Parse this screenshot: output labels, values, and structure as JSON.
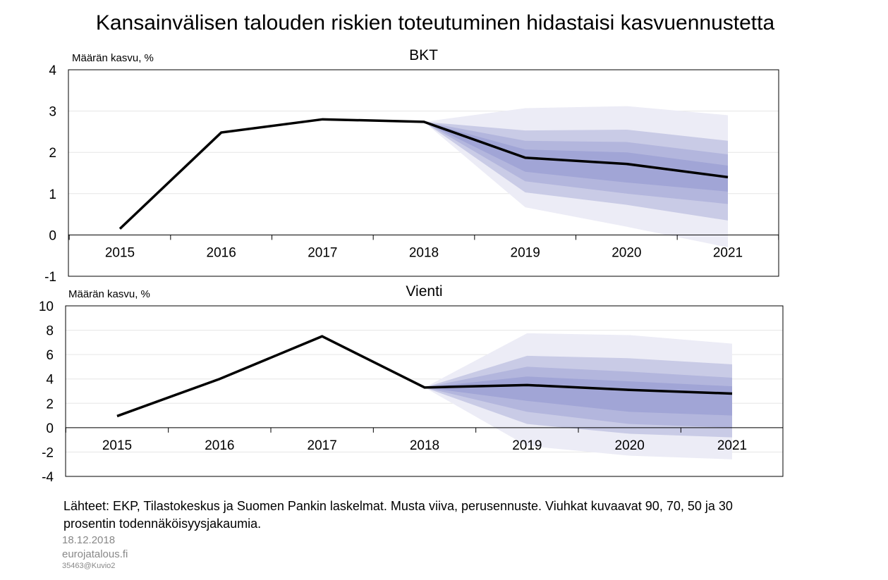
{
  "title": "Kansainvälisen talouden riskien toteutuminen hidastaisi kasvuennustetta",
  "chart_data": [
    {
      "type": "fan",
      "title": "BKT",
      "ylabel": "Määrän kasvu, %",
      "categories": [
        "2015",
        "2016",
        "2017",
        "2018",
        "2019",
        "2020",
        "2021"
      ],
      "values": [
        0.15,
        2.48,
        2.8,
        2.74,
        1.87,
        1.72,
        1.4
      ],
      "color": "#000000",
      "bands": [
        {
          "color": "#ececf6",
          "lower": [
            null,
            null,
            null,
            2.74,
            0.67,
            0.2,
            -0.3
          ],
          "upper": [
            null,
            null,
            null,
            2.74,
            3.07,
            3.12,
            2.9
          ]
        },
        {
          "color": "#c9cbe6",
          "lower": [
            null,
            null,
            null,
            2.74,
            1.03,
            0.73,
            0.35
          ],
          "upper": [
            null,
            null,
            null,
            2.74,
            2.53,
            2.55,
            2.28
          ]
        },
        {
          "color": "#b3b6dd",
          "lower": [
            null,
            null,
            null,
            2.74,
            1.3,
            1.0,
            0.75
          ],
          "upper": [
            null,
            null,
            null,
            2.74,
            2.28,
            2.25,
            1.95
          ]
        },
        {
          "color": "#a1a5d6",
          "lower": [
            null,
            null,
            null,
            2.74,
            1.53,
            1.27,
            1.05
          ],
          "upper": [
            null,
            null,
            null,
            2.74,
            2.07,
            2.0,
            1.68
          ]
        }
      ],
      "ylim": [
        -1,
        4
      ],
      "yticks": [
        -1,
        0,
        1,
        2,
        3,
        4
      ],
      "grid": true
    },
    {
      "type": "fan",
      "title": "Vienti",
      "ylabel": "Määrän kasvu, %",
      "categories": [
        "2015",
        "2016",
        "2017",
        "2018",
        "2019",
        "2020",
        "2021"
      ],
      "values": [
        0.95,
        4.0,
        7.5,
        3.3,
        3.5,
        3.1,
        2.8
      ],
      "color": "#000000",
      "bands": [
        {
          "color": "#ececf6",
          "lower": [
            null,
            null,
            null,
            3.3,
            -1.5,
            -2.3,
            -2.6
          ],
          "upper": [
            null,
            null,
            null,
            3.3,
            7.75,
            7.6,
            6.9
          ]
        },
        {
          "color": "#c9cbe6",
          "lower": [
            null,
            null,
            null,
            3.3,
            0.3,
            -0.5,
            -0.8
          ],
          "upper": [
            null,
            null,
            null,
            3.3,
            5.9,
            5.7,
            5.2
          ]
        },
        {
          "color": "#b3b6dd",
          "lower": [
            null,
            null,
            null,
            3.3,
            1.3,
            0.3,
            0.0
          ],
          "upper": [
            null,
            null,
            null,
            3.3,
            5.0,
            4.6,
            4.1
          ]
        },
        {
          "color": "#a1a5d6",
          "lower": [
            null,
            null,
            null,
            3.3,
            2.2,
            1.3,
            1.0
          ],
          "upper": [
            null,
            null,
            null,
            3.3,
            4.2,
            3.8,
            3.4
          ]
        }
      ],
      "ylim": [
        -4,
        10
      ],
      "yticks": [
        -4,
        -2,
        0,
        2,
        4,
        6,
        8,
        10
      ],
      "grid": true
    }
  ],
  "notes": {
    "source": "Lähteet: EKP, Tilastokeskus ja Suomen Pankin laskelmat. Musta viiva, perusennuste. Viuhkat kuvaavat 90, 70, 50 ja 30 prosentin todennäköisyysjakaumia.",
    "date": "18.12.2018",
    "site": "eurojatalous.fi",
    "code": "35463@Kuvio2"
  }
}
